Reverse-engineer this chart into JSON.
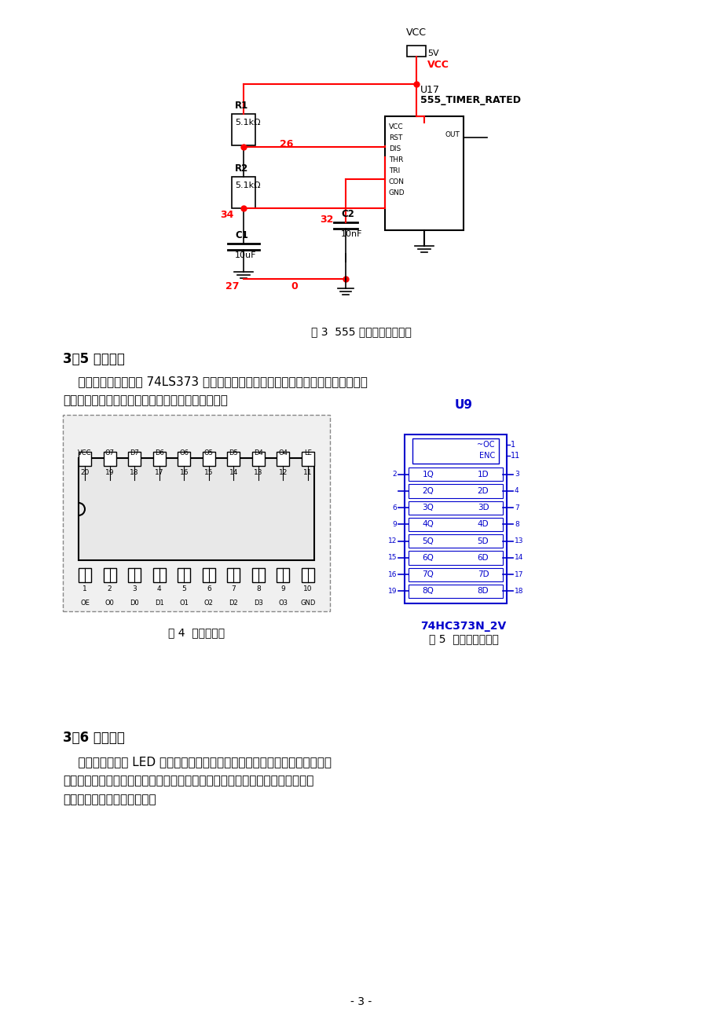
{
  "bg_color": "#ffffff",
  "page_width": 9.2,
  "page_height": 13.02,
  "title_555": "图 3  555 芯片多谐振荡电路",
  "section_35_title": "3．5 控制电路",
  "section_35_text1": "    控制电路部分，采用 74LS373 芯片，组成锁存器电路，通过定时电路传递过来的信",
  "section_35_text2": "号来显示其锁存功能，进而实现对显示电路的控制。",
  "fig4_caption": "图 4  芯片管脚图",
  "fig5_caption": "图 5  芯片仿真模型图",
  "section_36_title": "3．6 显示电路",
  "section_36_text1": "    显示电路有四块 LED 数码显示器组成，使其管脚与十进制计数器正确连接，",
  "section_36_text2": "显示数字。电动机的转速信号通过计数电路的处理，在显示电路中有数码显示器",
  "section_36_text3": "显示出数字，来记录其转速。",
  "page_num": "- 3 -"
}
